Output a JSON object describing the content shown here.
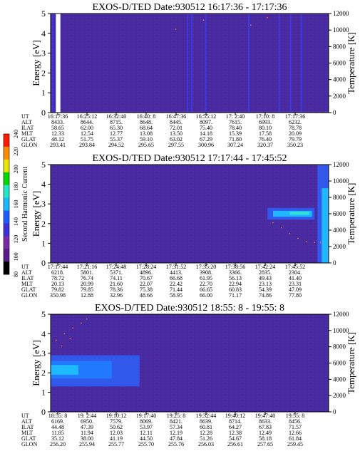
{
  "colorbar": {
    "label": "Second Harmonic Current",
    "ticks": [
      "80",
      "100",
      "120",
      "140",
      "160",
      "180",
      "200",
      "220",
      "240"
    ],
    "colors": [
      "#000000",
      "#5a1a8c",
      "#7a2aa8",
      "#3d2fd8",
      "#1f5cff",
      "#19b8ff",
      "#22e6c8",
      "#00d800",
      "#e6e600",
      "#ff8c00",
      "#ff1a00"
    ]
  },
  "chart_data": [
    {
      "type": "heatmap",
      "title": "EXOS-D/TED   Date:930512  16:17:36 - 17:17:36",
      "ylabel": "Energy [eV]",
      "y2label": "Temperature [K]",
      "ylim": [
        0,
        5
      ],
      "y_ticks": [
        "0",
        "1",
        "2",
        "3",
        "4",
        "5"
      ],
      "y2lim": [
        0,
        12000
      ],
      "y2_ticks": [
        "0",
        "2000",
        "4000",
        "6000",
        "8000",
        "10000",
        "12000"
      ],
      "background": "#4a2aa0",
      "plasma": [],
      "spikes": [
        0.005,
        0.018,
        0.022,
        0.49,
        0.505,
        0.555,
        0.71,
        0.82,
        0.86,
        0.9
      ],
      "white_gaps": [
        0.024,
        0.03
      ],
      "temperature_points": [
        [
          0.45,
          10100
        ],
        [
          0.55,
          11200
        ],
        [
          0.72,
          10600
        ],
        [
          0.78,
          11500
        ]
      ],
      "rows": [
        {
          "label": "UT",
          "values": [
            "16:17:36",
            "16:25:12",
            "16:32:40",
            "16:40: 8",
            "16:47:36",
            "16:55:12",
            "17: 2:40",
            "17:10: 8",
            "17:17:36"
          ]
        },
        {
          "label": "ALT",
          "values": [
            "8433.",
            "8644.",
            "8715.",
            "8648.",
            "8445.",
            "8097.",
            "7615.",
            "6993.",
            "6232."
          ]
        },
        {
          "label": "ILAT",
          "values": [
            "58.65",
            "62.00",
            "65.30",
            "68.64",
            "72.01",
            "75.40",
            "78.40",
            "80.10",
            "78.78"
          ]
        },
        {
          "label": "MLT",
          "values": [
            "12.33",
            "12.54",
            "12.77",
            "13.08",
            "13.50",
            "14.18",
            "15.39",
            "17.58",
            "20.09"
          ]
        },
        {
          "label": "GLAT",
          "values": [
            "48.12",
            "51.75",
            "55.37",
            "59.10",
            "63.02",
            "67.29",
            "71.80",
            "76.40",
            "79.79"
          ]
        },
        {
          "label": "GLON",
          "values": [
            "293.41",
            "293.84",
            "294.52",
            "295.65",
            "297.55",
            "300.96",
            "307.24",
            "320.37",
            "350.23"
          ]
        }
      ]
    },
    {
      "type": "heatmap",
      "title": "EXOS-D/TED   Date:930512  17:17:44 - 17:45:52",
      "ylabel": "Energy [eV]",
      "y2label": "Temperature [K]",
      "ylim": [
        0,
        5
      ],
      "y_ticks": [
        "0",
        "1",
        "2",
        "3",
        "4",
        "5"
      ],
      "y2lim": [
        0,
        12000
      ],
      "y2_ticks": [
        "0",
        "2000",
        "4000",
        "6000",
        "8000",
        "10000",
        "12000"
      ],
      "background": "#4a2aa0",
      "plasma": [
        {
          "x": [
            0.78,
            0.95
          ],
          "e": [
            2.2,
            2.8
          ],
          "color": "#2f5cf0"
        },
        {
          "x": [
            0.8,
            0.94
          ],
          "e": [
            2.35,
            2.65
          ],
          "color": "#1fbfff"
        },
        {
          "x": [
            0.86,
            0.93
          ],
          "e": [
            2.45,
            2.6
          ],
          "color": "#33e6d0"
        },
        {
          "x": [
            0.96,
            1.0
          ],
          "e": [
            0,
            5
          ],
          "color": "#2f5cf0"
        },
        {
          "x": [
            0.975,
            1.0
          ],
          "e": [
            0,
            3.8
          ],
          "color": "#1fbfff"
        }
      ],
      "spikes": [],
      "white_gaps": [],
      "temperature_points": [
        [
          0.8,
          4900
        ],
        [
          0.83,
          4300
        ],
        [
          0.86,
          3600
        ],
        [
          0.89,
          3000
        ],
        [
          0.92,
          2600
        ],
        [
          0.95,
          2500
        ],
        [
          0.97,
          2500
        ]
      ],
      "rows": [
        {
          "label": "UT",
          "values": [
            "17:17:44",
            "17:21:16",
            "17:24:48",
            "17:28:24",
            "17:31:52",
            "17:35:20",
            "17:38:56",
            "17:42:24",
            "17:45:52"
          ]
        },
        {
          "label": "ALT",
          "values": [
            "6218.",
            "5801.",
            "5371.",
            "4896.",
            "4413.",
            "3908.",
            "3366.",
            "2835.",
            "2304."
          ]
        },
        {
          "label": "ILAT",
          "values": [
            "78.72",
            "76.74",
            "74.11",
            "70.67",
            "66.68",
            "61.95",
            "56.13",
            "49.43",
            "41.40"
          ]
        },
        {
          "label": "MLT",
          "values": [
            "20.13",
            "20.99",
            "21.60",
            "22.07",
            "22.42",
            "22.70",
            "22.94",
            "23.13",
            "23.31"
          ]
        },
        {
          "label": "GLAT",
          "values": [
            "79.82",
            "79.85",
            "78.36",
            "75.38",
            "71.44",
            "66.65",
            "60.83",
            "54.39",
            "47.09"
          ]
        },
        {
          "label": "GLON",
          "values": [
            "350.98",
            "12.88",
            "32.96",
            "48.66",
            "58.95",
            "66.00",
            "71.17",
            "74.86",
            "77.80"
          ]
        }
      ]
    },
    {
      "type": "heatmap",
      "title": "EXOS-D/TED   Date:930512  18:55: 8 - 19:55: 8",
      "ylabel": "Energy [eV]",
      "y2label": "Temperature [K]",
      "ylim": [
        0,
        5
      ],
      "y_ticks": [
        "0",
        "1",
        "2",
        "3",
        "4",
        "5"
      ],
      "y2lim": [
        0,
        12000
      ],
      "y2_ticks": [
        "0",
        "2000",
        "4000",
        "6000",
        "8000",
        "10000",
        "12000"
      ],
      "background": "#4a2aa0",
      "plasma": [
        {
          "x": [
            0.0,
            0.32
          ],
          "e": [
            1.3,
            2.9
          ],
          "color": "#2f5cf0"
        },
        {
          "x": [
            0.0,
            0.22
          ],
          "e": [
            1.7,
            2.6
          ],
          "color": "#1f7cff"
        },
        {
          "x": [
            0.0,
            0.1
          ],
          "e": [
            1.9,
            2.4
          ],
          "color": "#1fbfff"
        }
      ],
      "spikes": [],
      "white_gaps": [],
      "temperature_points": [
        [
          0.02,
          8800
        ],
        [
          0.05,
          9600
        ],
        [
          0.08,
          10300
        ],
        [
          0.11,
          10900
        ],
        [
          0.13,
          11400
        ],
        [
          0.04,
          8100
        ],
        [
          0.07,
          9000
        ]
      ],
      "rows": [
        {
          "label": "UT",
          "values": [
            "18:55: 8",
            "19: 2:44",
            "19:10:12",
            "19:17:40",
            "19:25: 8",
            "19:32:44",
            "19:40:12",
            "19:47:40",
            "19:55: 8"
          ]
        },
        {
          "label": "ALT",
          "values": [
            "6169.",
            "6950.",
            "7579.",
            "8069.",
            "8421.",
            "8639.",
            "8714.",
            "8633.",
            "8456."
          ]
        },
        {
          "label": "ILAT",
          "values": [
            "44.48",
            "47.39",
            "50.62",
            "53.97",
            "57.34",
            "60.81",
            "64.27",
            "67.83",
            "71.57"
          ]
        },
        {
          "label": "MLT",
          "values": [
            "11.85",
            "11.94",
            "12.03",
            "12.11",
            "12.19",
            "12.28",
            "12.38",
            "12.49",
            "12.66"
          ]
        },
        {
          "label": "GLAT",
          "values": [
            "35.12",
            "38.00",
            "41.19",
            "44.50",
            "47.84",
            "51.26",
            "54.67",
            "58.18",
            "61.84"
          ]
        },
        {
          "label": "GLON",
          "values": [
            "256.20",
            "255.94",
            "255.77",
            "255.70",
            "255.76",
            "256.03",
            "256.61",
            "257.65",
            "259.45"
          ]
        }
      ]
    }
  ]
}
